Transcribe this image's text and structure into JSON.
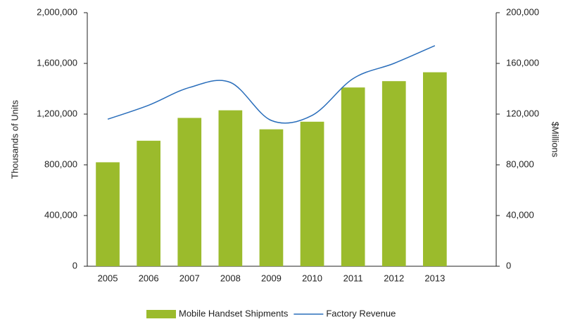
{
  "chart_data": {
    "type": "bar",
    "categories": [
      "2005",
      "2006",
      "2007",
      "2008",
      "2009",
      "2010",
      "2011",
      "2012",
      "2013",
      null
    ],
    "series": [
      {
        "name": "Mobile Handset Shipments",
        "type": "bar",
        "color": "#9bbb2c",
        "values": [
          820000,
          990000,
          1170000,
          1230000,
          1080000,
          1140000,
          1410000,
          1460000,
          1530000,
          null
        ]
      },
      {
        "name": "Factory Revenue",
        "type": "line",
        "axis": "y2",
        "color": "#2a6ebb",
        "values": [
          116000,
          127000,
          141000,
          145000,
          115000,
          119000,
          148000,
          160000,
          174000,
          null
        ]
      }
    ],
    "ylabel": "Thousands of Units",
    "y2label": "$Millions",
    "ylim": [
      0,
      2000000
    ],
    "yticks": [
      0,
      {
        "value": 400000,
        "label": "400,000"
      },
      {
        "value": 800000,
        "label": "800,000"
      },
      {
        "value": 1200000,
        "label": "1,200,000"
      },
      {
        "value": 1600000,
        "label": "1,600,000"
      },
      {
        "value": 2000000,
        "label": "2,000,000"
      }
    ],
    "y2lim": [
      0,
      200000
    ],
    "y2ticks": [
      0,
      {
        "value": 40000,
        "label": "40,000"
      },
      {
        "value": 80000,
        "label": "80,000"
      },
      {
        "value": 120000,
        "label": "120,000"
      },
      {
        "value": 160000,
        "label": "160,000"
      },
      {
        "value": 200000,
        "label": "200,000"
      }
    ],
    "grid": false,
    "legend": "bottom"
  }
}
